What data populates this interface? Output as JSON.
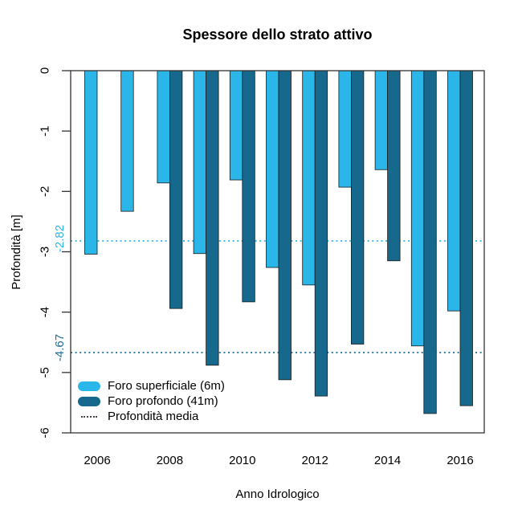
{
  "chart_data": {
    "type": "bar",
    "title": "Spessore dello strato attivo",
    "xlabel": "Anno Idrologico",
    "ylabel": "Profondità [m]",
    "ylim": [
      -6,
      0
    ],
    "yticks": [
      "0",
      "-1",
      "-2",
      "-3",
      "-4",
      "-5",
      "-6"
    ],
    "x_tick_labels": [
      "2006",
      "2008",
      "2010",
      "2012",
      "2014",
      "2016"
    ],
    "categories": [
      2006,
      2007,
      2008,
      2009,
      2010,
      2011,
      2012,
      2013,
      2014,
      2015,
      2016
    ],
    "series": [
      {
        "name": "Foro superficiale (6m)",
        "color": "#2bb6e9",
        "values": [
          -3.04,
          -2.33,
          -1.86,
          -3.03,
          -1.81,
          -3.26,
          -3.55,
          -1.93,
          -1.64,
          -4.56,
          -3.98
        ]
      },
      {
        "name": "Foro profondo (41m)",
        "color": "#16688c",
        "values": [
          null,
          null,
          -3.94,
          -4.88,
          -3.83,
          -5.12,
          -5.39,
          -4.53,
          -3.15,
          -5.68,
          -5.55
        ]
      }
    ],
    "mean_lines": [
      {
        "label": "-2.82",
        "value": -2.82,
        "color": "#2bb6e9"
      },
      {
        "label": "-4.67",
        "value": -4.67,
        "color": "#1d6e96"
      }
    ],
    "legend": {
      "position": "bottom-left",
      "items": [
        {
          "label": "Foro superficiale (6m)",
          "swatch": "pill",
          "color": "#2bb6e9"
        },
        {
          "label": "Foro profondo (41m)",
          "swatch": "pill",
          "color": "#16688c"
        },
        {
          "label": "Profondità media",
          "swatch": "dotted-line",
          "color": "#444444"
        }
      ]
    },
    "grid": false,
    "axis_color": "#333333",
    "bar_border_color": "#1b1b1b"
  }
}
